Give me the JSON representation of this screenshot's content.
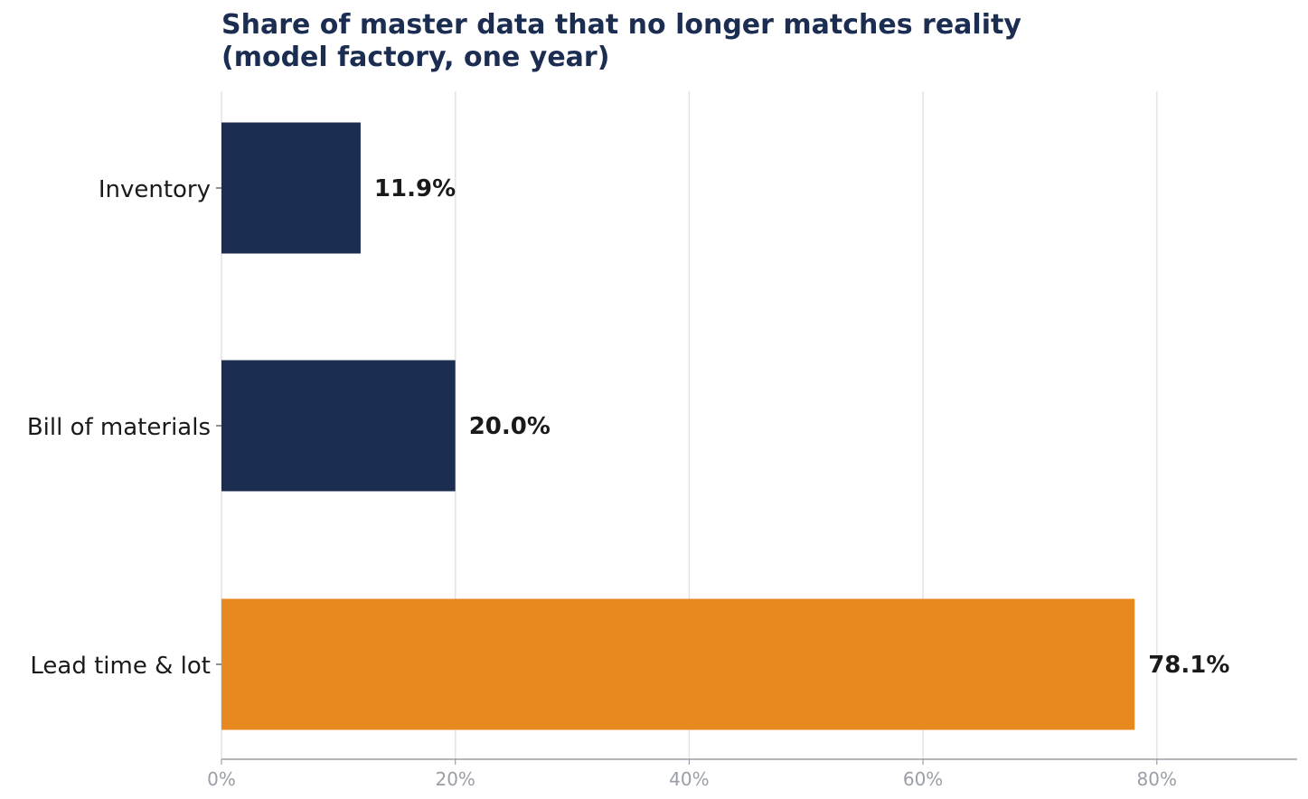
{
  "chart_data": {
    "type": "bar",
    "orientation": "horizontal",
    "title_lines": [
      "Share of master data that no longer matches reality",
      "(model factory, one year)"
    ],
    "categories": [
      "Inventory",
      "Bill of materials",
      "Lead time & lot"
    ],
    "values": [
      11.9,
      20.0,
      78.1
    ],
    "value_labels": [
      "11.9%",
      "20.0%",
      "78.1%"
    ],
    "bar_colors": [
      "#1c2d52",
      "#1c2d52",
      "#e8891f"
    ],
    "xlim": [
      0,
      92
    ],
    "xticks": [
      0,
      20,
      40,
      60,
      80
    ],
    "xtick_labels": [
      "0%",
      "20%",
      "40%",
      "60%",
      "80%"
    ],
    "grid": "vertical",
    "legend": "none",
    "colors": {
      "title": "#1c2d52",
      "grid": "#e3e3e3",
      "axis": "#9a9ea6",
      "text": "#1a1a1a"
    }
  }
}
